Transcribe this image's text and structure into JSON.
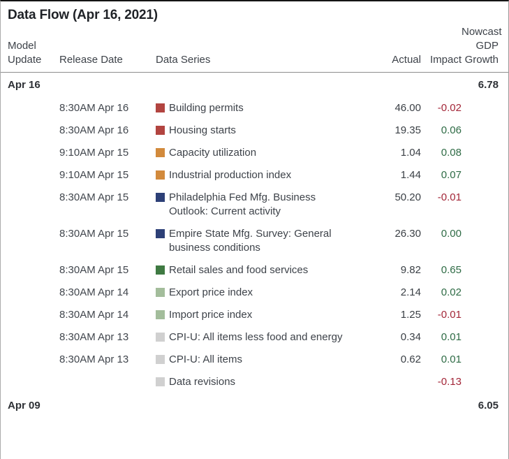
{
  "title": "Data Flow (Apr 16, 2021)",
  "header": {
    "model_update": "Model Update",
    "release_date": "Release Date",
    "data_series": "Data Series",
    "actual": "Actual",
    "impact": "Impact",
    "nowcast": "Nowcast GDP Growth"
  },
  "colors": {
    "swatch_red": "#b24440",
    "swatch_orange": "#d28a3c",
    "swatch_navy": "#2d4077",
    "swatch_green": "#3f7a42",
    "swatch_lightgreen": "#a3bd9b",
    "swatch_gray": "#d0d0d0",
    "impact_positive": "#2e6b45",
    "impact_negative": "#a32638"
  },
  "groups": [
    {
      "model_update": "Apr 16",
      "nowcast_gdp_growth": "6.78",
      "rows": [
        {
          "release_date": "8:30AM Apr 16",
          "swatch": "swatch_red",
          "data_series": "Building permits",
          "actual": "46.00",
          "impact": "-0.02"
        },
        {
          "release_date": "8:30AM Apr 16",
          "swatch": "swatch_red",
          "data_series": "Housing starts",
          "actual": "19.35",
          "impact": "0.06"
        },
        {
          "release_date": "9:10AM Apr 15",
          "swatch": "swatch_orange",
          "data_series": "Capacity utilization",
          "actual": "1.04",
          "impact": "0.08"
        },
        {
          "release_date": "9:10AM Apr 15",
          "swatch": "swatch_orange",
          "data_series": "Industrial production index",
          "actual": "1.44",
          "impact": "0.07"
        },
        {
          "release_date": "8:30AM Apr 15",
          "swatch": "swatch_navy",
          "data_series": "Philadelphia Fed Mfg. Business Outlook: Current activity",
          "actual": "50.20",
          "impact": "-0.01"
        },
        {
          "release_date": "8:30AM Apr 15",
          "swatch": "swatch_navy",
          "data_series": "Empire State Mfg. Survey: General business conditions",
          "actual": "26.30",
          "impact": "0.00"
        },
        {
          "release_date": "8:30AM Apr 15",
          "swatch": "swatch_green",
          "data_series": "Retail sales and food services",
          "actual": "9.82",
          "impact": "0.65"
        },
        {
          "release_date": "8:30AM Apr 14",
          "swatch": "swatch_lightgreen",
          "data_series": "Export price index",
          "actual": "2.14",
          "impact": "0.02"
        },
        {
          "release_date": "8:30AM Apr 14",
          "swatch": "swatch_lightgreen",
          "data_series": "Import price index",
          "actual": "1.25",
          "impact": "-0.01"
        },
        {
          "release_date": "8:30AM Apr 13",
          "swatch": "swatch_gray",
          "data_series": "CPI-U: All items less food and energy",
          "actual": "0.34",
          "impact": "0.01"
        },
        {
          "release_date": "8:30AM Apr 13",
          "swatch": "swatch_gray",
          "data_series": "CPI-U: All items",
          "actual": "0.62",
          "impact": "0.01"
        },
        {
          "release_date": "",
          "swatch": "swatch_gray",
          "data_series": "Data revisions",
          "actual": "",
          "impact": "-0.13"
        }
      ]
    },
    {
      "model_update": "Apr 09",
      "nowcast_gdp_growth": "6.05",
      "rows": []
    }
  ]
}
